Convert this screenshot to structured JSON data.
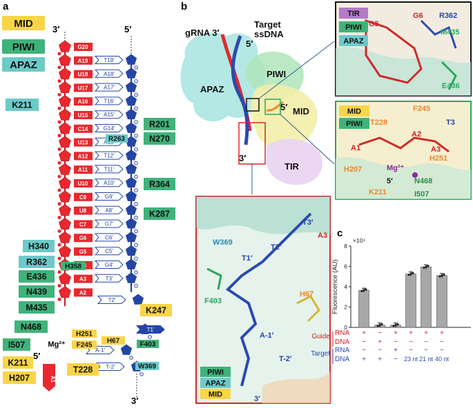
{
  "panels": {
    "a": "a",
    "b": "b",
    "c": "c"
  },
  "legend": {
    "mid": "MID",
    "piwi": "PIWI",
    "apaz": "APAZ"
  },
  "colors": {
    "mid": "#f8d548",
    "piwi": "#3fb37a",
    "apaz": "#6ccac9",
    "rna": "#e8282e",
    "dna": "#2545a6",
    "tir": "#d6a9e0"
  },
  "guide": {
    "end_top": "3′",
    "end_bottom": "5′",
    "nts": [
      "G20",
      "A19",
      "U18",
      "U17",
      "A16",
      "U15",
      "C14",
      "U13",
      "A12",
      "A11",
      "U10",
      "C9",
      "U8",
      "C7",
      "G6",
      "G5",
      "C4",
      "A3",
      "A2",
      "A1"
    ]
  },
  "target": {
    "end_top": "5′",
    "end_bottom": "3′",
    "nts": [
      "T19′",
      "A18′",
      "A17′",
      "T16′",
      "A15′",
      "G14′",
      "A13′",
      "T12′",
      "T11′",
      "A10′",
      "G9′",
      "A8′",
      "G7′",
      "C6′",
      "C5′",
      "G4′",
      "T3′",
      "T2′",
      "T1′",
      "A-1′",
      "T-2′"
    ]
  },
  "mg_label": "Mg²⁺",
  "residues": [
    "K211",
    "R201",
    "R263",
    "N270",
    "R364",
    "K287",
    "H340",
    "R362",
    "H358",
    "E436",
    "N439",
    "M435",
    "K247",
    "N468",
    "H251",
    "F245",
    "I507",
    "K211",
    "T228",
    "H207",
    "H67",
    "F403",
    "W369"
  ],
  "structure": {
    "grna": "gRNA 3′",
    "grna5": "5′",
    "target": "Target",
    "target2": "ssDNA",
    "apaz": "APAZ",
    "piwi": "PIWI",
    "mid": "MID",
    "tir": "TIR",
    "five": "5′",
    "three": "3′"
  },
  "inset1": {
    "tags": [
      "TIR",
      "PIWI",
      "APAZ"
    ],
    "labels": [
      "G5",
      "G6",
      "R362",
      "M435",
      "E436"
    ]
  },
  "inset2": {
    "tags": [
      "MID",
      "PIWI"
    ],
    "labels": [
      "F245",
      "T228",
      "T3",
      "A2",
      "A3",
      "A1",
      "H251",
      "Mg²⁺",
      "H207",
      "5′",
      "N468",
      "K211",
      "I507"
    ]
  },
  "inset3": {
    "tags": [
      "PIWI",
      "APAZ",
      "MID"
    ],
    "labels": [
      "W369",
      "T3′",
      "A3",
      "T2′",
      "T1′",
      "F403",
      "H67",
      "A-1′",
      "T-2′",
      "3′"
    ]
  },
  "chart_data": {
    "type": "bar",
    "ylabel": "Fluorescence (AU)",
    "y_multiplier": "×10⁴",
    "ylim": [
      0,
      8
    ],
    "yticks": [
      "0",
      "2",
      "4",
      "6",
      "8"
    ],
    "values": [
      3.65,
      0.22,
      0.22,
      5.25,
      5.95,
      5.1
    ],
    "row_labels": {
      "guide": "Guide",
      "target": "Target",
      "rna": "RNA",
      "dna": "DNA"
    },
    "guide_rna": [
      "+",
      "−",
      "+",
      "+",
      "+",
      "+"
    ],
    "guide_dna": [
      "−",
      "+",
      "−",
      "−",
      "−",
      "−"
    ],
    "target_rna": [
      "−",
      "−",
      "+",
      "−",
      "−",
      "−"
    ],
    "target_dna": [
      "+",
      "+",
      "−",
      "23 nt",
      "21 nt",
      "40 nt"
    ]
  }
}
